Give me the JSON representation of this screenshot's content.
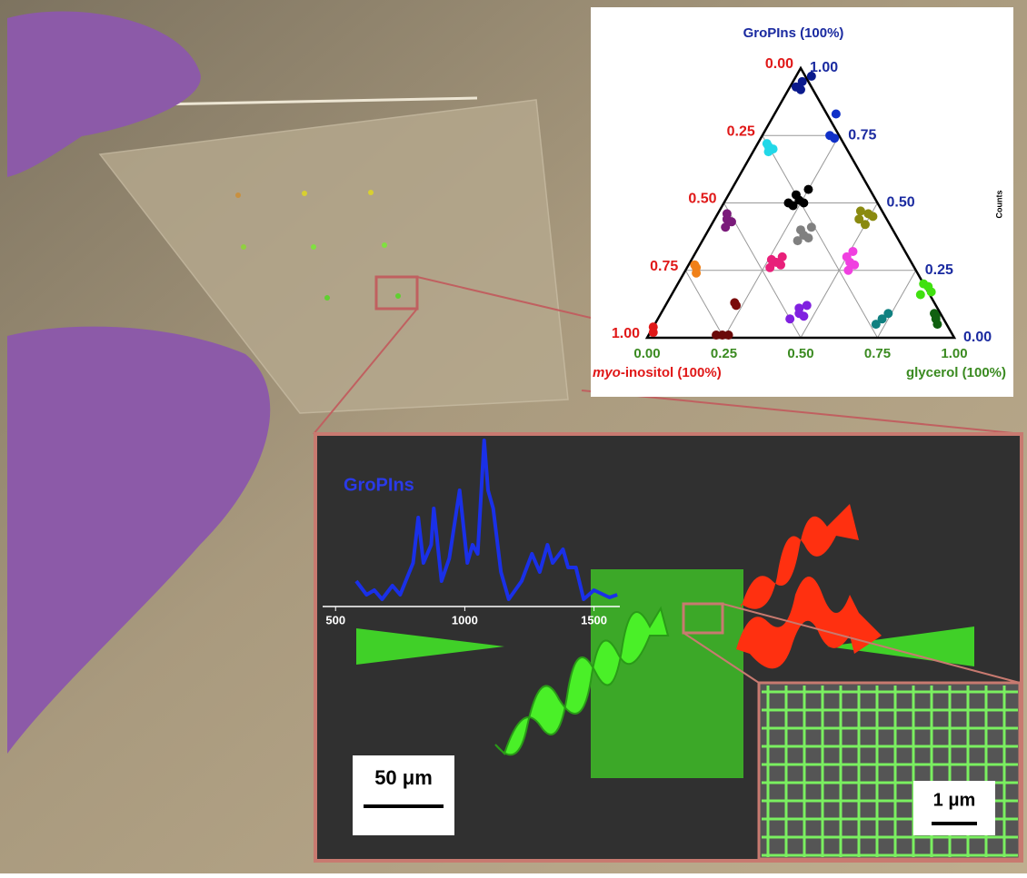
{
  "chart_data": [
    {
      "type": "ternary",
      "top_title": "GroPIns (100%)",
      "left_title_italic": "myo",
      "left_title": "-inositol (100%)",
      "right_title": "glycerol (100%)",
      "side_label": "Counts",
      "left_ticks": [
        {
          "value": 0,
          "label": "0.00"
        },
        {
          "value": 0.25,
          "label": "0.25"
        },
        {
          "value": 0.5,
          "label": "0.50"
        },
        {
          "value": 0.75,
          "label": "0.75"
        },
        {
          "value": 1,
          "label": "1.00"
        }
      ],
      "right_ticks": [
        {
          "value": 1,
          "label": "1.00"
        },
        {
          "value": 0.75,
          "label": "0.75"
        },
        {
          "value": 0.5,
          "label": "0.50"
        },
        {
          "value": 0.25,
          "label": "0.25"
        },
        {
          "value": 0,
          "label": "0.00"
        }
      ],
      "bottom_ticks": [
        {
          "value": 0,
          "label": "0.00"
        },
        {
          "value": 0.25,
          "label": "0.25"
        },
        {
          "value": 0.5,
          "label": "0.50"
        },
        {
          "value": 0.75,
          "label": "0.75"
        },
        {
          "value": 1,
          "label": "1.00"
        }
      ],
      "grid": true,
      "clusters": [
        {
          "color": "#0a1a8c",
          "points": [
            [
              0.03,
              0.95
            ],
            [
              0.04,
              0.92
            ],
            [
              0.05,
              0.97
            ],
            [
              0.02,
              0.93
            ]
          ]
        },
        {
          "color": "#1030c8",
          "points": [
            [
              0.22,
              0.75
            ],
            [
              0.2,
              0.83
            ],
            [
              0.24,
              0.74
            ]
          ]
        },
        {
          "color": "#22d8e8",
          "points": [
            [
              0.04,
              0.71
            ],
            [
              0.05,
              0.69
            ],
            [
              0.03,
              0.72
            ],
            [
              0.06,
              0.7
            ]
          ]
        },
        {
          "color": "#000000",
          "points": [
            [
              0.24,
              0.51
            ],
            [
              0.22,
              0.53
            ],
            [
              0.26,
              0.5
            ],
            [
              0.23,
              0.49
            ],
            [
              0.25,
              0.55
            ],
            [
              0.21,
              0.5
            ]
          ]
        },
        {
          "color": "#8a8a10",
          "points": [
            [
              0.49,
              0.46
            ],
            [
              0.47,
              0.44
            ],
            [
              0.51,
              0.45
            ],
            [
              0.5,
              0.42
            ],
            [
              0.46,
              0.47
            ]
          ]
        },
        {
          "color": "#7a1a7a",
          "points": [
            [
              0.04,
              0.44
            ],
            [
              0.05,
              0.41
            ],
            [
              0.03,
              0.46
            ],
            [
              0.06,
              0.43
            ]
          ]
        },
        {
          "color": "#808080",
          "points": [
            [
              0.32,
              0.38
            ],
            [
              0.3,
              0.4
            ],
            [
              0.34,
              0.37
            ],
            [
              0.31,
              0.36
            ],
            [
              0.33,
              0.41
            ]
          ]
        },
        {
          "color": "#e8207a",
          "points": [
            [
              0.28,
              0.28
            ],
            [
              0.26,
              0.29
            ],
            [
              0.3,
              0.27
            ],
            [
              0.27,
              0.26
            ],
            [
              0.29,
              0.3
            ]
          ]
        },
        {
          "color": "#f040e0",
          "points": [
            [
              0.52,
              0.28
            ],
            [
              0.5,
              0.3
            ],
            [
              0.54,
              0.27
            ],
            [
              0.53,
              0.25
            ],
            [
              0.51,
              0.32
            ]
          ]
        },
        {
          "color": "#f08018",
          "points": [
            [
              0.03,
              0.26
            ],
            [
              0.04,
              0.24
            ],
            [
              0.02,
              0.27
            ]
          ]
        },
        {
          "color": "#40e010",
          "points": [
            [
              0.82,
              0.19
            ],
            [
              0.8,
              0.2
            ],
            [
              0.84,
              0.17
            ],
            [
              0.81,
              0.16
            ]
          ]
        },
        {
          "color": "#7a0a0a",
          "points": [
            [
              0.23,
              0.12
            ],
            [
              0.22,
              0.13
            ]
          ]
        },
        {
          "color": "#8020e0",
          "points": [
            [
              0.45,
              0.09
            ],
            [
              0.44,
              0.11
            ],
            [
              0.47,
              0.08
            ],
            [
              0.46,
              0.12
            ],
            [
              0.43,
              0.07
            ]
          ]
        },
        {
          "color": "#108080",
          "points": [
            [
              0.73,
              0.07
            ],
            [
              0.74,
              0.09
            ],
            [
              0.72,
              0.05
            ]
          ]
        },
        {
          "color": "#106010",
          "points": [
            [
              0.905,
              0.07
            ],
            [
              0.89,
              0.09
            ],
            [
              0.92,
              0.05
            ],
            [
              0.9,
              0.08
            ]
          ]
        },
        {
          "color": "#6a0a0a",
          "points": [
            [
              0.24,
              0.01
            ],
            [
              0.22,
              0.01
            ],
            [
              0.26,
              0.01
            ]
          ]
        },
        {
          "color": "#e01818",
          "points": [
            [
              0.0,
              0.04
            ],
            [
              0.01,
              0.02
            ]
          ]
        }
      ]
    },
    {
      "type": "line",
      "label": "GroPIns",
      "color": "#1a30e8",
      "xlim": [
        450,
        1600
      ],
      "ylim": [
        0,
        180
      ],
      "xticks": [
        500,
        1000,
        1500
      ],
      "x": [
        580,
        620,
        650,
        680,
        720,
        750,
        800,
        820,
        840,
        870,
        880,
        895,
        910,
        940,
        980,
        1010,
        1030,
        1050,
        1075,
        1090,
        1110,
        1140,
        1170,
        1220,
        1260,
        1290,
        1320,
        1340,
        1380,
        1400,
        1430,
        1460,
        1500,
        1560,
        1590
      ],
      "values": [
        20,
        5,
        10,
        0,
        15,
        5,
        40,
        90,
        40,
        60,
        100,
        60,
        20,
        45,
        120,
        40,
        60,
        50,
        175,
        120,
        100,
        30,
        0,
        20,
        50,
        30,
        60,
        40,
        55,
        35,
        35,
        0,
        10,
        2,
        5
      ]
    }
  ],
  "scale_bars": {
    "main": "50 μm",
    "inset": "1 μm"
  }
}
